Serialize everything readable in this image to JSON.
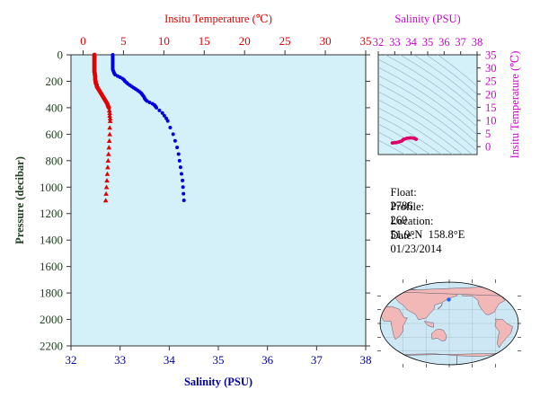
{
  "colors": {
    "temperature": "#e00000",
    "salinity_axis": "#00009a",
    "salinity_points": "#0000e0",
    "pressure_axis": "#204020",
    "ts_axis": "#cc00cc",
    "ts_points": "#e0006a",
    "plot_bg": "#d4f0f8",
    "map_land": "#f2b8b8",
    "map_ocean": "#cde8f4",
    "map_marker": "#2060ff"
  },
  "chart_data": [
    {
      "id": "profile",
      "type": "scatter",
      "top_xlabel": "Insitu Temperature (℃)",
      "bottom_xlabel": "Salinity (PSU)",
      "ylabel": "Pressure (decibar)",
      "temp_ticks": [
        "0",
        "5",
        "10",
        "15",
        "20",
        "25",
        "30",
        "35"
      ],
      "temp_lim": [
        -1.5,
        35
      ],
      "sal_ticks": [
        "32",
        "33",
        "34",
        "35",
        "36",
        "37",
        "38"
      ],
      "sal_lim": [
        32,
        38
      ],
      "pressure_ticks": [
        "0",
        "200",
        "400",
        "600",
        "800",
        "1000",
        "1200",
        "1400",
        "1600",
        "1800",
        "2000",
        "2200"
      ],
      "pressure_lim": [
        0,
        2200
      ],
      "y_reversed": true,
      "grid": false,
      "series": [
        {
          "key": "temperature",
          "points": [
            [
              1.4,
              0
            ],
            [
              1.4,
              10
            ],
            [
              1.4,
              20
            ],
            [
              1.4,
              30
            ],
            [
              1.4,
              40
            ],
            [
              1.4,
              50
            ],
            [
              1.4,
              60
            ],
            [
              1.4,
              70
            ],
            [
              1.4,
              80
            ],
            [
              1.4,
              90
            ],
            [
              1.4,
              100
            ],
            [
              1.4,
              110
            ],
            [
              1.4,
              120
            ],
            [
              1.4,
              130
            ],
            [
              1.45,
              140
            ],
            [
              1.45,
              150
            ],
            [
              1.5,
              160
            ],
            [
              1.5,
              170
            ],
            [
              1.5,
              180
            ],
            [
              1.5,
              190
            ],
            [
              1.55,
              200
            ],
            [
              1.55,
              210
            ],
            [
              1.6,
              220
            ],
            [
              1.7,
              230
            ],
            [
              1.7,
              240
            ],
            [
              1.8,
              250
            ],
            [
              1.9,
              260
            ],
            [
              2.0,
              270
            ],
            [
              2.1,
              280
            ],
            [
              2.2,
              290
            ],
            [
              2.3,
              300
            ],
            [
              2.4,
              310
            ],
            [
              2.5,
              320
            ],
            [
              2.6,
              330
            ],
            [
              2.7,
              340
            ],
            [
              2.8,
              350
            ],
            [
              2.9,
              360
            ],
            [
              3.0,
              370
            ],
            [
              3.05,
              380
            ],
            [
              3.1,
              390
            ],
            [
              3.2,
              400
            ],
            [
              3.25,
              420
            ],
            [
              3.3,
              440
            ],
            [
              3.3,
              460
            ],
            [
              3.35,
              480
            ],
            [
              3.35,
              500
            ],
            [
              3.3,
              550
            ],
            [
              3.3,
              600
            ],
            [
              3.25,
              650
            ],
            [
              3.2,
              700
            ],
            [
              3.15,
              750
            ],
            [
              3.1,
              800
            ],
            [
              3.05,
              850
            ],
            [
              3.0,
              900
            ],
            [
              2.95,
              950
            ],
            [
              2.9,
              1000
            ],
            [
              2.85,
              1050
            ],
            [
              2.8,
              1100
            ]
          ]
        },
        {
          "key": "salinity",
          "points": [
            [
              32.85,
              0
            ],
            [
              32.85,
              10
            ],
            [
              32.85,
              20
            ],
            [
              32.85,
              30
            ],
            [
              32.85,
              40
            ],
            [
              32.85,
              50
            ],
            [
              32.85,
              60
            ],
            [
              32.85,
              70
            ],
            [
              32.85,
              80
            ],
            [
              32.85,
              90
            ],
            [
              32.85,
              100
            ],
            [
              32.85,
              110
            ],
            [
              32.86,
              120
            ],
            [
              32.87,
              130
            ],
            [
              32.88,
              140
            ],
            [
              32.9,
              150
            ],
            [
              32.95,
              160
            ],
            [
              33.0,
              170
            ],
            [
              33.05,
              180
            ],
            [
              33.08,
              190
            ],
            [
              33.1,
              200
            ],
            [
              33.13,
              210
            ],
            [
              33.16,
              220
            ],
            [
              33.2,
              230
            ],
            [
              33.24,
              240
            ],
            [
              33.28,
              250
            ],
            [
              33.32,
              260
            ],
            [
              33.36,
              270
            ],
            [
              33.4,
              280
            ],
            [
              33.43,
              290
            ],
            [
              33.45,
              300
            ],
            [
              33.47,
              310
            ],
            [
              33.49,
              320
            ],
            [
              33.5,
              330
            ],
            [
              33.52,
              340
            ],
            [
              33.55,
              350
            ],
            [
              33.6,
              360
            ],
            [
              33.66,
              370
            ],
            [
              33.7,
              380
            ],
            [
              33.72,
              390
            ],
            [
              33.74,
              400
            ],
            [
              33.8,
              420
            ],
            [
              33.86,
              440
            ],
            [
              33.9,
              460
            ],
            [
              33.94,
              480
            ],
            [
              33.97,
              500
            ],
            [
              34.02,
              550
            ],
            [
              34.08,
              600
            ],
            [
              34.12,
              650
            ],
            [
              34.16,
              700
            ],
            [
              34.19,
              750
            ],
            [
              34.21,
              800
            ],
            [
              34.23,
              850
            ],
            [
              34.25,
              900
            ],
            [
              34.27,
              950
            ],
            [
              34.28,
              1000
            ],
            [
              34.29,
              1050
            ],
            [
              34.3,
              1100
            ]
          ]
        }
      ]
    },
    {
      "id": "ts_diagram",
      "type": "scatter",
      "xlabel": "Salinity (PSU)",
      "ylabel": "Insitu Temperature (℃)",
      "x_ticks": [
        "32",
        "33",
        "34",
        "35",
        "36",
        "37",
        "38"
      ],
      "x_lim": [
        32,
        38
      ],
      "y_ticks": [
        "0",
        "5",
        "10",
        "15",
        "20",
        "25",
        "30",
        "35"
      ],
      "y_lim": [
        -3,
        35
      ],
      "density_contours": true,
      "points": [
        [
          32.85,
          1.4
        ],
        [
          32.9,
          1.45
        ],
        [
          33.0,
          1.5
        ],
        [
          33.1,
          1.55
        ],
        [
          33.2,
          1.7
        ],
        [
          33.3,
          1.9
        ],
        [
          33.4,
          2.1
        ],
        [
          33.45,
          2.3
        ],
        [
          33.5,
          2.6
        ],
        [
          33.55,
          2.8
        ],
        [
          33.66,
          3.0
        ],
        [
          33.74,
          3.2
        ],
        [
          33.86,
          3.3
        ],
        [
          33.97,
          3.35
        ],
        [
          34.08,
          3.3
        ],
        [
          34.16,
          3.2
        ],
        [
          34.21,
          3.1
        ],
        [
          34.25,
          3.0
        ],
        [
          34.28,
          2.9
        ],
        [
          34.3,
          2.8
        ]
      ]
    }
  ],
  "info": {
    "float_label": "Float:",
    "float_value": "2786",
    "profile_label": "Profile:",
    "profile_value": "269",
    "location_label": "Location:",
    "location_value": "51.9°N  158.8°E",
    "date_label": "Date:",
    "date_value": "01/23/2014"
  },
  "map": {
    "marker_lat": 51.9,
    "marker_lon": 158.8,
    "center_lon": 160
  }
}
